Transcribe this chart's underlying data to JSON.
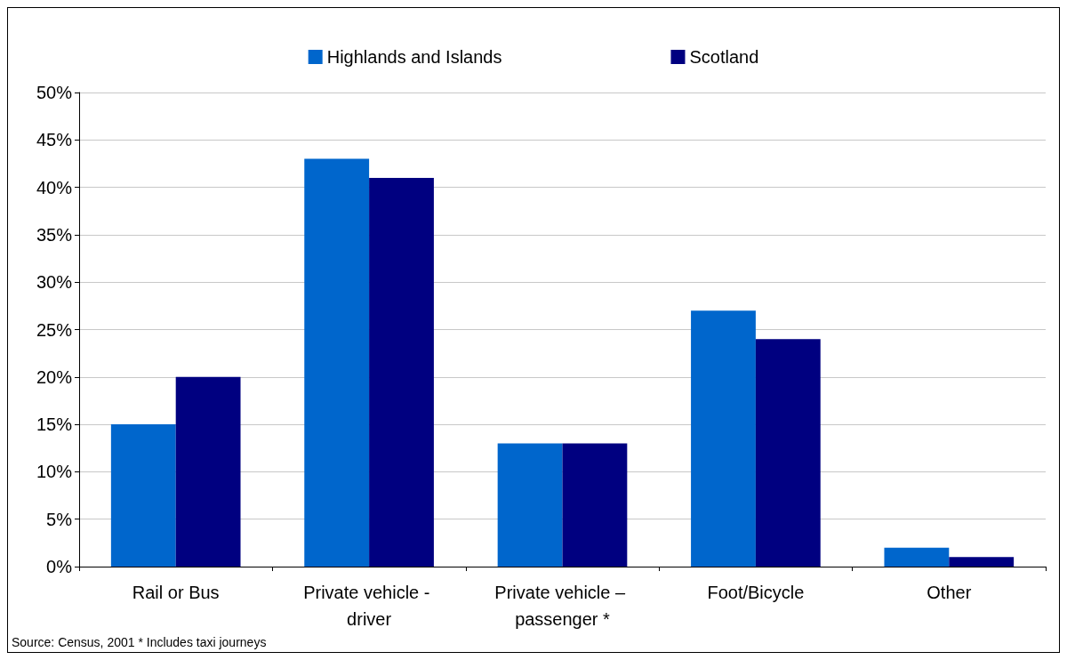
{
  "chart_data": {
    "type": "bar",
    "categories": [
      "Rail or Bus",
      "Private vehicle - driver",
      "Private vehicle – passenger *",
      "Foot/Bicycle",
      "Other"
    ],
    "series": [
      {
        "name": "Highlands and Islands",
        "color": "#0066cc",
        "values": [
          15,
          43,
          13,
          27,
          2
        ]
      },
      {
        "name": "Scotland",
        "color": "#000080",
        "values": [
          20,
          41,
          13,
          24,
          1
        ]
      }
    ],
    "ylim": [
      0,
      50
    ],
    "yticks": [
      {
        "value": 0,
        "label": "0%"
      },
      {
        "value": 5,
        "label": "5%"
      },
      {
        "value": 10,
        "label": "10%"
      },
      {
        "value": 15,
        "label": "15%"
      },
      {
        "value": 20,
        "label": "20%"
      },
      {
        "value": 25,
        "label": "25%"
      },
      {
        "value": 30,
        "label": "30%"
      },
      {
        "value": 35,
        "label": "35%"
      },
      {
        "value": 40,
        "label": "40%"
      },
      {
        "value": 45,
        "label": "45%"
      },
      {
        "value": 50,
        "label": "50%"
      }
    ],
    "grid": "y",
    "legend": "top",
    "annotations": [
      "Source: Census, 2001 * Includes taxi journeys"
    ]
  }
}
